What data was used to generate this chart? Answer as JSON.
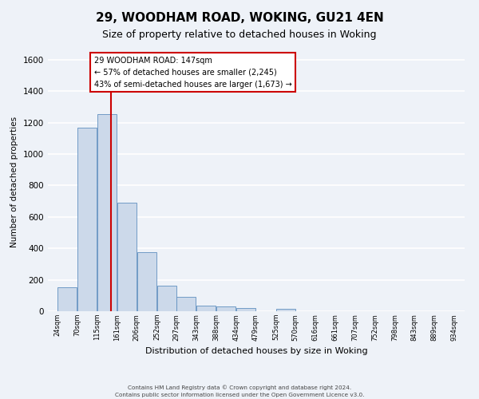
{
  "title": "29, WOODHAM ROAD, WOKING, GU21 4EN",
  "subtitle": "Size of property relative to detached houses in Woking",
  "xlabel": "Distribution of detached houses by size in Woking",
  "ylabel": "Number of detached properties",
  "bar_left_edges": [
    24,
    70,
    115,
    161,
    206,
    252,
    297,
    343,
    388,
    434,
    479,
    525,
    570,
    616,
    661,
    707,
    752,
    798,
    843,
    889
  ],
  "bar_heights": [
    150,
    1170,
    1255,
    690,
    375,
    165,
    90,
    38,
    30,
    20,
    0,
    15,
    0,
    0,
    0,
    0,
    0,
    0,
    0,
    0
  ],
  "bin_width": 45,
  "bar_color": "#ccd9ea",
  "bar_edge_color": "#6090c0",
  "vline_x": 147,
  "vline_color": "#cc0000",
  "annotation_text": "29 WOODHAM ROAD: 147sqm\n← 57% of detached houses are smaller (2,245)\n43% of semi-detached houses are larger (1,673) →",
  "annotation_box_color": "#ffffff",
  "annotation_box_edge_color": "#cc0000",
  "ylim": [
    0,
    1650
  ],
  "yticks": [
    0,
    200,
    400,
    600,
    800,
    1000,
    1200,
    1400,
    1600
  ],
  "xtick_labels": [
    "24sqm",
    "70sqm",
    "115sqm",
    "161sqm",
    "206sqm",
    "252sqm",
    "297sqm",
    "343sqm",
    "388sqm",
    "434sqm",
    "479sqm",
    "525sqm",
    "570sqm",
    "616sqm",
    "661sqm",
    "707sqm",
    "752sqm",
    "798sqm",
    "843sqm",
    "889sqm",
    "934sqm"
  ],
  "xtick_positions": [
    24,
    70,
    115,
    161,
    206,
    252,
    297,
    343,
    388,
    434,
    479,
    525,
    570,
    616,
    661,
    707,
    752,
    798,
    843,
    889,
    934
  ],
  "footer_line1": "Contains HM Land Registry data © Crown copyright and database right 2024.",
  "footer_line2": "Contains public sector information licensed under the Open Government Licence v3.0.",
  "background_color": "#eef2f8",
  "grid_color": "#ffffff",
  "title_fontsize": 11,
  "subtitle_fontsize": 9,
  "xlim_left": 2,
  "xlim_right": 958
}
